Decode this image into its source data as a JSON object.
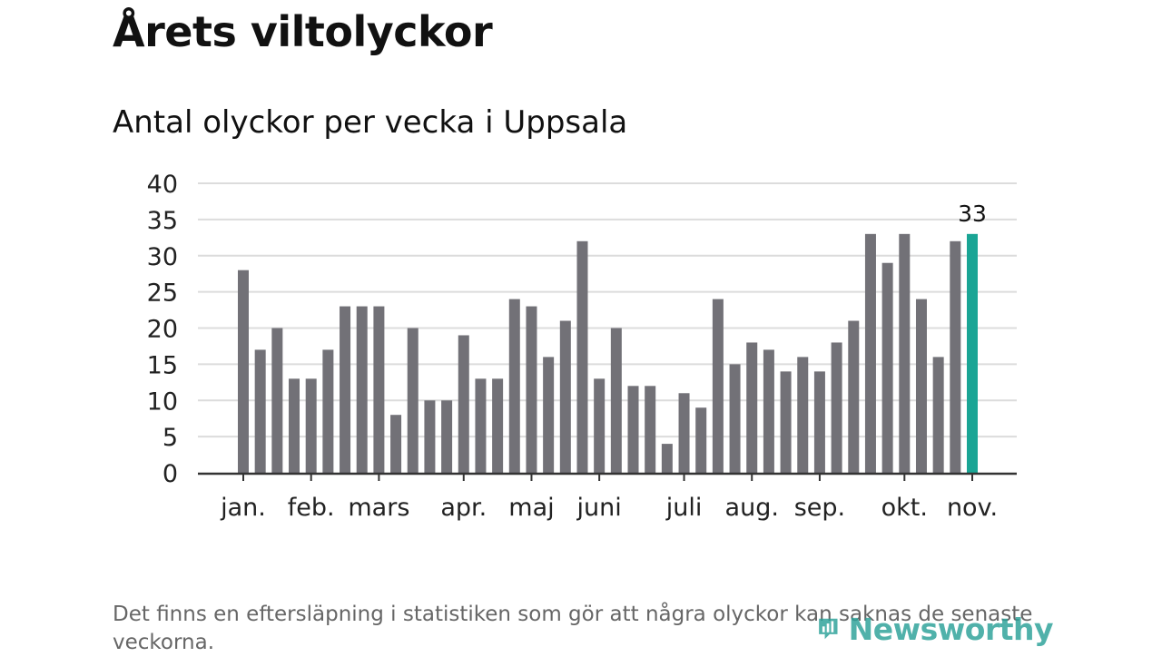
{
  "header": {
    "title": "Årets viltolyckor",
    "subtitle": "Antal olyckor per vecka i Uppsala"
  },
  "footnote": "Det finns en eftersläpning i statistiken som gör att några olyckor kan saknas de senaste veckorna.",
  "logo": {
    "name": "logo-newsworthy",
    "text": "Newsworthy"
  },
  "colors": {
    "bar": "#727177",
    "highlight": "#1aa595",
    "grid": "#dcdcdc",
    "axis": "#333333",
    "logo": "#2aa198"
  },
  "chart_data": {
    "type": "bar",
    "title": "Antal olyckor per vecka i Uppsala",
    "xlabel": "",
    "ylabel": "",
    "ylim": [
      0,
      40
    ],
    "yticks": [
      0,
      5,
      10,
      15,
      20,
      25,
      30,
      35,
      40
    ],
    "grid": true,
    "values": [
      28,
      17,
      20,
      13,
      13,
      17,
      23,
      23,
      23,
      8,
      20,
      10,
      10,
      19,
      13,
      13,
      24,
      23,
      16,
      21,
      32,
      13,
      20,
      12,
      12,
      4,
      11,
      9,
      24,
      15,
      18,
      17,
      14,
      16,
      14,
      18,
      21,
      33,
      29,
      33,
      24,
      16,
      32,
      33
    ],
    "highlight_index": 43,
    "highlight_label": "33",
    "month_ticks": [
      {
        "label": "jan.",
        "index": 0
      },
      {
        "label": "feb.",
        "index": 4
      },
      {
        "label": "mars",
        "index": 8
      },
      {
        "label": "apr.",
        "index": 13
      },
      {
        "label": "maj",
        "index": 17
      },
      {
        "label": "juni",
        "index": 21
      },
      {
        "label": "juli",
        "index": 26
      },
      {
        "label": "aug.",
        "index": 30
      },
      {
        "label": "sep.",
        "index": 34
      },
      {
        "label": "okt.",
        "index": 39
      },
      {
        "label": "nov.",
        "index": 43
      }
    ]
  }
}
